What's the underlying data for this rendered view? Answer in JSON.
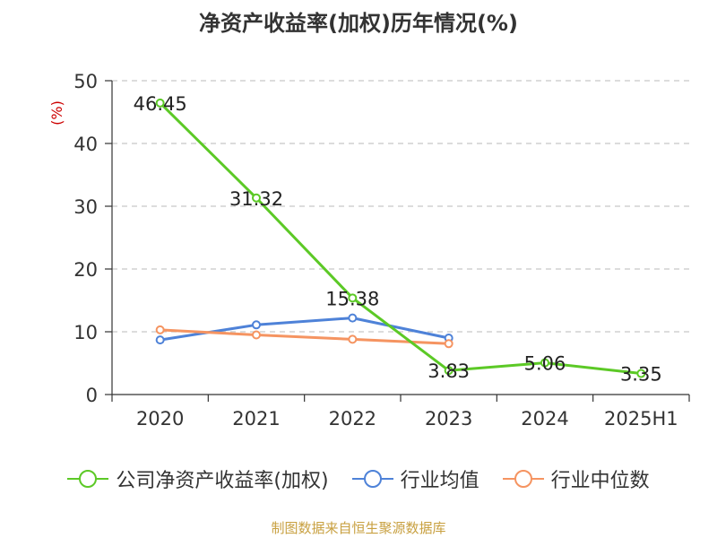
{
  "chart_data": {
    "type": "line",
    "title": "净资产收益率(加权)历年情况(%)",
    "ylabel": "(%)",
    "xlabel": "",
    "categories": [
      "2020",
      "2021",
      "2022",
      "2023",
      "2024",
      "2025H1"
    ],
    "ylim": [
      0,
      50
    ],
    "yticks": [
      "0",
      "10",
      "20",
      "30",
      "40",
      "50"
    ],
    "grid": true,
    "legend_position": "bottom",
    "series": [
      {
        "name": "公司净资产收益率(加权)",
        "color": "#5cc926",
        "values": [
          46.45,
          31.32,
          15.38,
          3.83,
          5.06,
          3.35
        ],
        "labels": [
          "46.45",
          "31.32",
          "15.38",
          "3.83",
          "5.06",
          "3.35"
        ]
      },
      {
        "name": "行业均值",
        "color": "#4e82d8",
        "values": [
          8.7,
          11.1,
          12.2,
          9.0,
          null,
          null
        ]
      },
      {
        "name": "行业中位数",
        "color": "#f59461",
        "values": [
          10.3,
          9.5,
          8.8,
          8.1,
          null,
          null
        ]
      }
    ]
  },
  "footer": {
    "source": "制图数据来自恒生聚源数据库"
  }
}
